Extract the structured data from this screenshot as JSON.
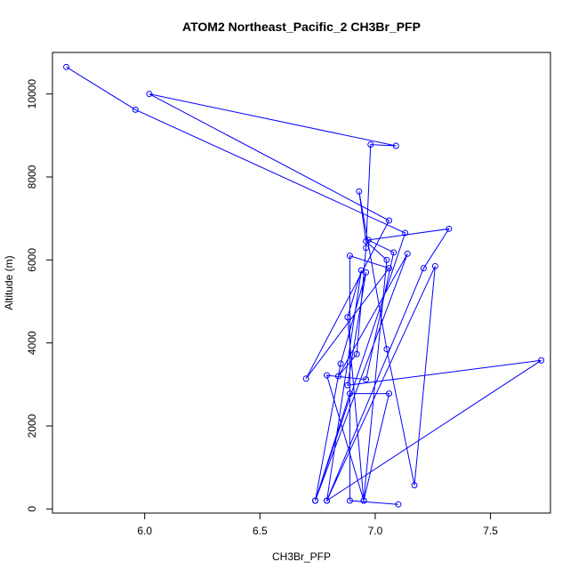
{
  "chart_data": {
    "type": "line",
    "title": "ATOM2 Northeast_Pacific_2 CH3Br_PFP",
    "xlabel": "CH3Br_PFP",
    "ylabel": "Altitude (m)",
    "xlim": [
      5.6,
      7.76
    ],
    "ylim": [
      -100,
      11000
    ],
    "xticks": [
      6.0,
      6.5,
      7.0,
      7.5
    ],
    "xtick_labels": [
      "6.0",
      "6.5",
      "7.0",
      "7.5"
    ],
    "yticks": [
      0,
      2000,
      4000,
      6000,
      8000,
      10000
    ],
    "ytick_labels": [
      "0",
      "2000",
      "4000",
      "6000",
      "8000",
      "10000"
    ],
    "color": "#0000ff",
    "series": [
      {
        "x": [
          5.66,
          5.96,
          7.13,
          6.74,
          6.85,
          6.96,
          6.88,
          7.72,
          6.79,
          6.94,
          6.88,
          6.95,
          7.05,
          6.96,
          6.93,
          7.05,
          7.17,
          7.26,
          6.79,
          7.21,
          7.32,
          6.97,
          7.08,
          6.96,
          6.79,
          6.95,
          7.06,
          6.89,
          6.74,
          7.14,
          6.84,
          6.92,
          6.96,
          6.98,
          7.09,
          6.02,
          7.06,
          6.7,
          7.06,
          6.89,
          6.89,
          7.1
        ],
        "y": [
          10650,
          9620,
          6650,
          200,
          3500,
          5700,
          2980,
          3580,
          200,
          5750,
          4620,
          200,
          6000,
          6450,
          7650,
          3850,
          570,
          5850,
          200,
          5800,
          6750,
          6480,
          6180,
          3120,
          3220,
          200,
          2780,
          2780,
          200,
          6150,
          3200,
          3730,
          6290,
          8780,
          8750,
          10000,
          6950,
          3140,
          5800,
          6100,
          200,
          110
        ]
      }
    ]
  }
}
